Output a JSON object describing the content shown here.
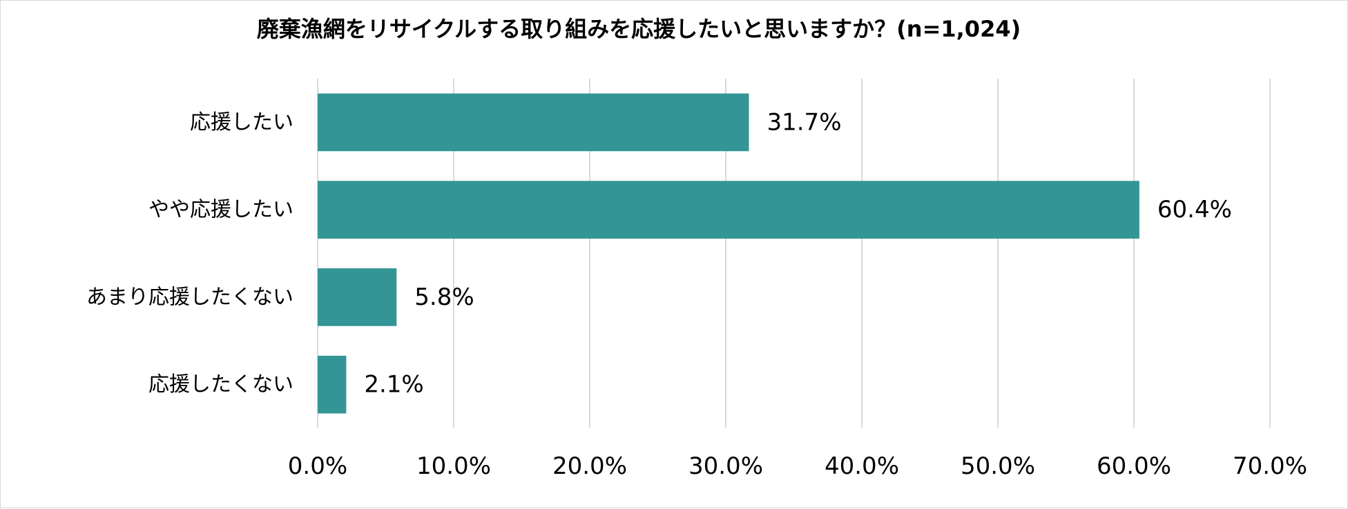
{
  "chart_data": {
    "type": "bar",
    "orientation": "horizontal",
    "title": "廃棄漁網をリサイクルする取り組みを応援したいと思いますか？(n=1,024)",
    "categories": [
      "応援したい",
      "やや応援したい",
      "あまり応援したくない",
      "応援したくない"
    ],
    "values": [
      31.7,
      60.4,
      5.8,
      2.1
    ],
    "data_labels": [
      "31.7%",
      "60.4%",
      "5.8%",
      "2.1%"
    ],
    "xlim": [
      0,
      70
    ],
    "x_ticks": [
      0,
      10,
      20,
      30,
      40,
      50,
      60,
      70
    ],
    "x_tick_labels": [
      "0.0%",
      "10.0%",
      "20.0%",
      "30.0%",
      "40.0%",
      "50.0%",
      "60.0%",
      "70.0%"
    ],
    "xlabel": "",
    "ylabel": "",
    "grid": true,
    "legend": "none",
    "bar_color": "#339595",
    "grid_color": "#d9d9d9"
  }
}
